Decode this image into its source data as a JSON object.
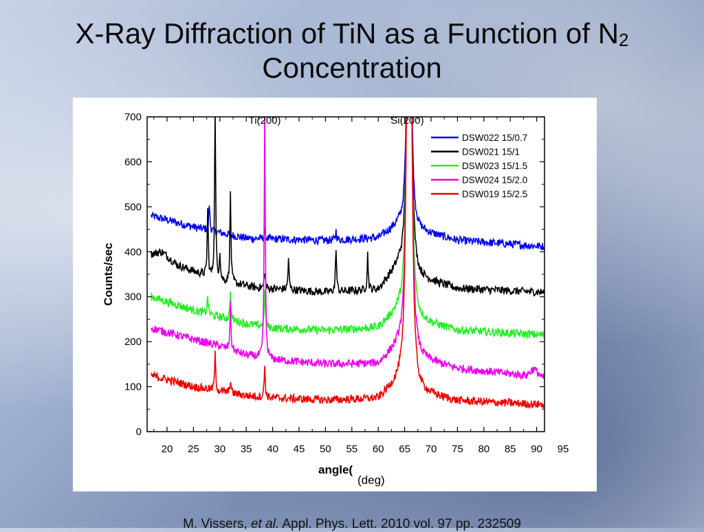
{
  "slide": {
    "title_main": "X-Ray Diffraction of TiN as a Function of N",
    "title_sub": "2",
    "title_line2": "Concentration",
    "citation_authors": "M. Vissers, ",
    "citation_etal": "et al.",
    "citation_rest": " Appl. Phys. Lett. 2010 vol. 97 pp. 232509"
  },
  "chart_data": {
    "type": "line",
    "title": "",
    "xlabel": "angle(",
    "xlabel_unit": "(deg)",
    "ylabel": "Counts/sec",
    "xlim": [
      16,
      92
    ],
    "ylim": [
      0,
      700
    ],
    "x_ticks": [
      20,
      25,
      30,
      35,
      40,
      45,
      50,
      55,
      60,
      65,
      70,
      75,
      80,
      85,
      90,
      95
    ],
    "y_ticks": [
      0,
      100,
      200,
      300,
      400,
      500,
      600,
      700
    ],
    "annotations": [
      {
        "text": "Ti(200)",
        "x": 38.5
      },
      {
        "text": "Si(200)",
        "x": 65.5
      }
    ],
    "legend_position": "top-right",
    "series": [
      {
        "name": "DSW022 15/0.7",
        "color": "#0000ee",
        "baseline": [
          [
            17,
            480
          ],
          [
            25,
            455
          ],
          [
            35,
            430
          ],
          [
            50,
            425
          ],
          [
            60,
            430
          ],
          [
            64,
            460
          ],
          [
            68,
            445
          ],
          [
            75,
            425
          ],
          [
            91,
            412
          ]
        ],
        "peaks": [
          [
            28,
            60
          ],
          [
            38.5,
            20
          ],
          [
            52,
            20
          ],
          [
            65.5,
            300
          ],
          [
            66.2,
            300
          ]
        ]
      },
      {
        "name": "DSW021 15/1",
        "color": "#000000",
        "baseline": [
          [
            17,
            395
          ],
          [
            19,
            400
          ],
          [
            22,
            370
          ],
          [
            30,
            335
          ],
          [
            37,
            320
          ],
          [
            50,
            310
          ],
          [
            60,
            315
          ],
          [
            64,
            370
          ],
          [
            68,
            340
          ],
          [
            75,
            318
          ],
          [
            91,
            310
          ]
        ],
        "peaks": [
          [
            27.7,
            150
          ],
          [
            29.1,
            380
          ],
          [
            30,
            60
          ],
          [
            32,
            200
          ],
          [
            38.5,
            40
          ],
          [
            43,
            70
          ],
          [
            52,
            100
          ],
          [
            58,
            80
          ],
          [
            65.5,
            400
          ],
          [
            66.2,
            400
          ]
        ]
      },
      {
        "name": "DSW023 15/1.5",
        "color": "#22ee22",
        "baseline": [
          [
            17,
            300
          ],
          [
            25,
            270
          ],
          [
            35,
            240
          ],
          [
            40,
            230
          ],
          [
            50,
            225
          ],
          [
            60,
            230
          ],
          [
            64,
            270
          ],
          [
            68,
            245
          ],
          [
            75,
            225
          ],
          [
            91,
            215
          ]
        ],
        "peaks": [
          [
            27.7,
            40
          ],
          [
            32,
            60
          ],
          [
            38.5,
            80
          ],
          [
            65.5,
            480
          ],
          [
            66.2,
            480
          ]
        ]
      },
      {
        "name": "DSW024 15/2.0",
        "color": "#ee00ee",
        "baseline": [
          [
            17,
            230
          ],
          [
            25,
            205
          ],
          [
            30,
            190
          ],
          [
            35,
            170
          ],
          [
            40,
            160
          ],
          [
            50,
            150
          ],
          [
            60,
            150
          ],
          [
            64,
            190
          ],
          [
            68,
            160
          ],
          [
            75,
            140
          ],
          [
            88,
            125
          ],
          [
            89.5,
            140
          ],
          [
            91,
            120
          ]
        ],
        "peaks": [
          [
            32,
            100
          ],
          [
            38.5,
            560
          ],
          [
            65.5,
            560
          ],
          [
            66.2,
            560
          ]
        ]
      },
      {
        "name": "DSW019 15/2.5",
        "color": "#ee0000",
        "baseline": [
          [
            17,
            125
          ],
          [
            25,
            100
          ],
          [
            30,
            90
          ],
          [
            35,
            80
          ],
          [
            40,
            75
          ],
          [
            50,
            70
          ],
          [
            60,
            72
          ],
          [
            64,
            110
          ],
          [
            68,
            85
          ],
          [
            75,
            68
          ],
          [
            91,
            60
          ]
        ],
        "peaks": [
          [
            29.1,
            80
          ],
          [
            32,
            30
          ],
          [
            38.5,
            70
          ],
          [
            65.5,
            640
          ],
          [
            66.2,
            640
          ]
        ]
      }
    ]
  }
}
